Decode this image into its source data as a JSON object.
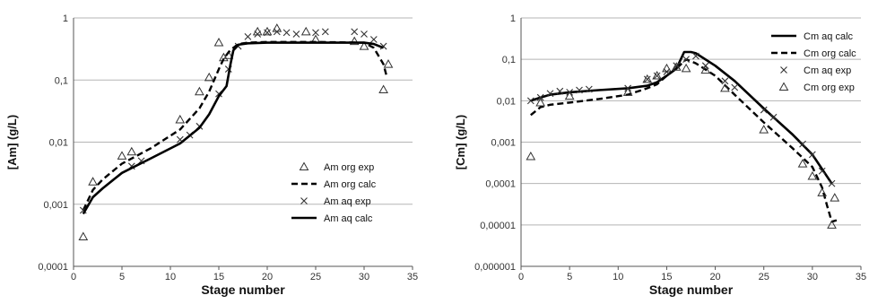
{
  "chart_data": [
    {
      "type": "line",
      "xlabel": "Stage number",
      "ylabel": "[Am] (g/L)",
      "xlim": [
        0,
        35
      ],
      "ylim": [
        0.0001,
        1
      ],
      "y_scale": "log",
      "grid": "horizontal",
      "legend_position": "right",
      "x_ticks": [
        "0",
        "5",
        "10",
        "15",
        "20",
        "25",
        "30",
        "35"
      ],
      "y_ticks": [
        "0,0001",
        "0,001",
        "0,01",
        "0,1",
        "1"
      ],
      "series": [
        {
          "name": "Am org exp",
          "style": "triangle",
          "x": [
            1,
            2,
            5,
            6,
            11,
            13,
            14,
            15,
            15.5,
            16,
            19,
            20,
            21,
            24,
            25,
            29,
            30,
            32,
            32.5
          ],
          "y": [
            0.0003,
            0.0023,
            0.006,
            0.007,
            0.023,
            0.065,
            0.11,
            0.4,
            0.23,
            0.25,
            0.6,
            0.6,
            0.68,
            0.6,
            0.45,
            0.42,
            0.35,
            0.07,
            0.18
          ]
        },
        {
          "name": "Am org calc",
          "style": "dashed",
          "x": [
            1,
            2,
            3,
            5,
            8,
            11,
            13,
            14,
            15,
            15.5,
            16,
            16.5,
            17,
            18,
            20,
            25,
            30,
            31,
            32,
            32.3
          ],
          "y": [
            0.0008,
            0.0017,
            0.0025,
            0.0045,
            0.008,
            0.016,
            0.035,
            0.065,
            0.15,
            0.22,
            0.28,
            0.33,
            0.38,
            0.4,
            0.41,
            0.41,
            0.4,
            0.33,
            0.18,
            0.12
          ]
        },
        {
          "name": "Am aq exp",
          "style": "cross",
          "x": [
            1,
            6,
            7,
            11,
            12,
            13,
            15,
            16,
            17,
            18,
            19,
            20,
            21,
            22,
            23,
            25,
            26,
            29,
            30,
            31,
            32
          ],
          "y": [
            0.0008,
            0.0041,
            0.005,
            0.011,
            0.013,
            0.018,
            0.06,
            0.15,
            0.35,
            0.5,
            0.55,
            0.58,
            0.6,
            0.58,
            0.55,
            0.58,
            0.6,
            0.6,
            0.55,
            0.45,
            0.35
          ]
        },
        {
          "name": "Am aq calc",
          "style": "solid",
          "x": [
            1,
            2,
            3,
            5,
            8,
            11,
            13,
            14,
            15,
            15.8,
            16.2,
            16.5,
            17,
            18,
            20,
            25,
            30,
            31,
            32
          ],
          "y": [
            0.0007,
            0.0013,
            0.0018,
            0.0032,
            0.0055,
            0.0095,
            0.017,
            0.028,
            0.055,
            0.08,
            0.18,
            0.3,
            0.37,
            0.39,
            0.4,
            0.4,
            0.4,
            0.38,
            0.33
          ]
        }
      ]
    },
    {
      "type": "line",
      "xlabel": "Stage number",
      "ylabel": "[Cm] (g/L)",
      "xlim": [
        0,
        35
      ],
      "ylim": [
        1e-06,
        1
      ],
      "y_scale": "log",
      "grid": "horizontal",
      "legend_position": "top-right",
      "x_ticks": [
        "0",
        "5",
        "10",
        "15",
        "20",
        "25",
        "30",
        "35"
      ],
      "y_ticks": [
        "0,000001",
        "0,00001",
        "0,0001",
        "0,001",
        "0,01",
        "0,1",
        "1"
      ],
      "series": [
        {
          "name": "Cm aq calc",
          "style": "solid",
          "x": [
            1,
            2,
            3,
            5,
            8,
            11,
            13,
            14,
            15,
            16,
            16.8,
            17.5,
            18,
            20,
            22,
            25,
            28,
            30,
            32
          ],
          "y": [
            0.01,
            0.012,
            0.014,
            0.016,
            0.018,
            0.02,
            0.023,
            0.028,
            0.04,
            0.06,
            0.15,
            0.15,
            0.14,
            0.07,
            0.03,
            0.0065,
            0.0015,
            0.0005,
            0.0001
          ]
        },
        {
          "name": "Cm org calc",
          "style": "dashed",
          "x": [
            1,
            2,
            3,
            5,
            8,
            11,
            13,
            14,
            15,
            16,
            17,
            18,
            20,
            22,
            25,
            28,
            30,
            31,
            31.5,
            32,
            32.5
          ],
          "y": [
            0.0045,
            0.007,
            0.008,
            0.009,
            0.011,
            0.014,
            0.02,
            0.025,
            0.04,
            0.06,
            0.1,
            0.08,
            0.04,
            0.014,
            0.003,
            0.0007,
            0.00025,
            8e-05,
            3e-05,
            1.2e-05,
            1.3e-05
          ]
        },
        {
          "name": "Cm aq exp",
          "style": "cross",
          "x": [
            1,
            2,
            3,
            4,
            5,
            6,
            7,
            11,
            13,
            14,
            15,
            16,
            17,
            18,
            19,
            21,
            22,
            25,
            26,
            29,
            30,
            31,
            32
          ],
          "y": [
            0.01,
            0.012,
            0.015,
            0.017,
            0.016,
            0.018,
            0.019,
            0.02,
            0.033,
            0.04,
            0.05,
            0.07,
            0.1,
            0.12,
            0.07,
            0.03,
            0.021,
            0.006,
            0.004,
            0.0009,
            0.0005,
            0.0002,
            0.0001
          ]
        },
        {
          "name": "Cm org exp",
          "style": "triangle",
          "x": [
            1,
            2,
            5,
            11,
            13,
            14,
            15,
            16,
            17,
            19,
            21,
            25,
            29,
            30,
            31,
            32,
            32.3
          ],
          "y": [
            0.00045,
            0.009,
            0.013,
            0.016,
            0.033,
            0.04,
            0.06,
            0.065,
            0.06,
            0.055,
            0.02,
            0.002,
            0.0003,
            0.00015,
            6e-05,
            1e-05,
            4.5e-05
          ]
        }
      ]
    }
  ]
}
